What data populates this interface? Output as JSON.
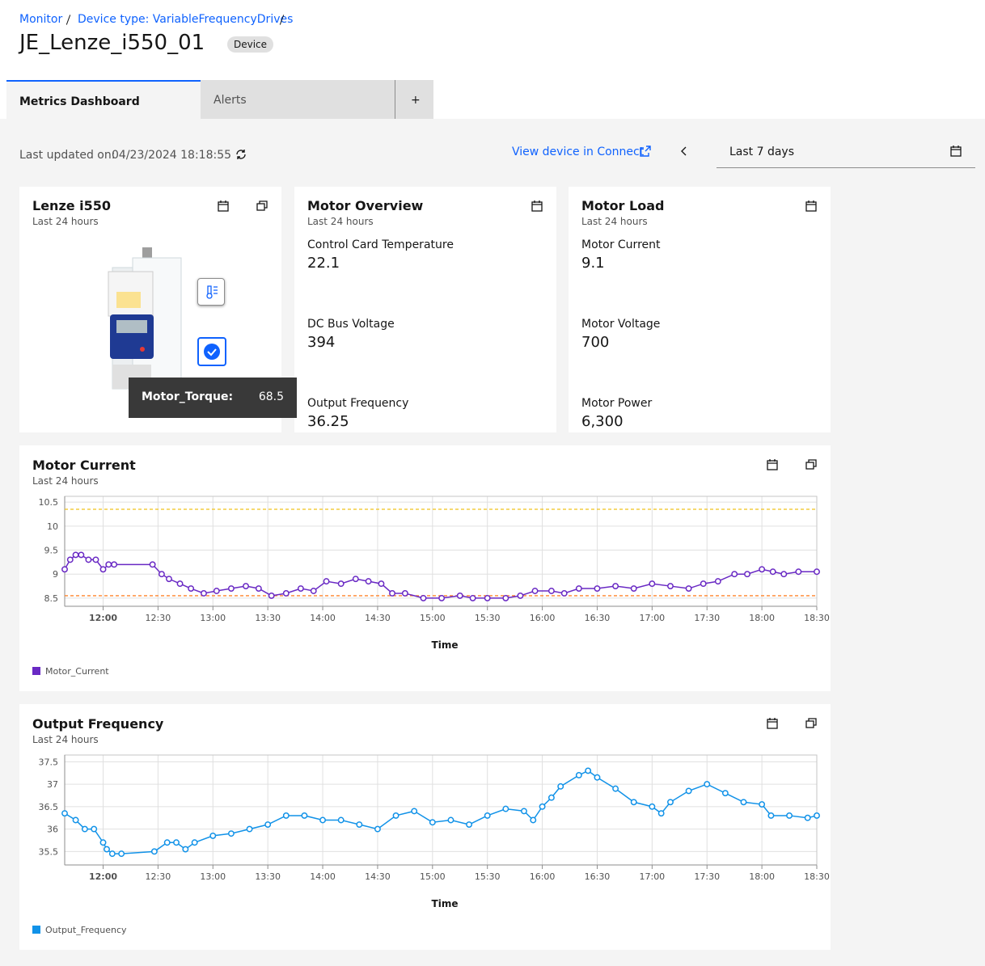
{
  "breadcrumb": [
    "Monitor",
    "Device type: VariableFrequencyDrives"
  ],
  "title": "JE_Lenze_i550_01",
  "tag": "Device",
  "tabs": [
    "Metrics Dashboard",
    "Alerts",
    "+"
  ],
  "toolbar": {
    "last_updated_label": "Last updated on:",
    "last_updated": "04/23/2024 18:18:55",
    "link": "View device in Connect",
    "range": "Last 7 days"
  },
  "cards": [
    {
      "title": "Lenze i550",
      "subtitle": "Last 24 hours",
      "tooltip": {
        "label": "Motor_Torque:",
        "value": "68.5"
      }
    },
    {
      "title": "Motor Overview",
      "subtitle": "Last 24 hours",
      "metrics": [
        {
          "label": "Control Card Temperature",
          "value": "22.1"
        },
        {
          "label": "DC Bus Voltage",
          "value": "394"
        },
        {
          "label": "Output Frequency",
          "value": "36.25"
        }
      ]
    },
    {
      "title": "Motor Load",
      "subtitle": "Last 24 hours",
      "metrics": [
        {
          "label": "Motor Current",
          "value": "9.1"
        },
        {
          "label": "Motor Voltage",
          "value": "700"
        },
        {
          "label": "Motor Power",
          "value": "6,300"
        }
      ]
    }
  ],
  "chart_data": [
    {
      "type": "line",
      "title": "Motor Current",
      "subtitle": "Last 24 hours",
      "x_label": "Time",
      "x": [
        "11:39",
        "11:42",
        "11:45",
        "11:48",
        "11:52",
        "11:56",
        "12:00",
        "12:03",
        "12:06",
        "12:27",
        "12:32",
        "12:36",
        "12:42",
        "12:48",
        "12:55",
        "13:02",
        "13:10",
        "13:18",
        "13:25",
        "13:32",
        "13:40",
        "13:48",
        "13:55",
        "14:02",
        "14:10",
        "14:18",
        "14:25",
        "14:32",
        "14:38",
        "14:45",
        "14:55",
        "15:05",
        "15:15",
        "15:22",
        "15:30",
        "15:40",
        "15:48",
        "15:56",
        "16:05",
        "16:12",
        "16:20",
        "16:30",
        "16:40",
        "16:50",
        "17:00",
        "17:10",
        "17:20",
        "17:28",
        "17:36",
        "17:45",
        "17:52",
        "18:00",
        "18:06",
        "18:12",
        "18:20",
        "18:30"
      ],
      "series": [
        {
          "name": "Motor_Current",
          "color": "#6929c4",
          "values": [
            9.1,
            9.3,
            9.4,
            9.4,
            9.3,
            9.3,
            9.1,
            9.2,
            9.2,
            9.2,
            9.0,
            8.9,
            8.8,
            8.7,
            8.6,
            8.65,
            8.7,
            8.75,
            8.7,
            8.55,
            8.6,
            8.7,
            8.65,
            8.85,
            8.8,
            8.9,
            8.85,
            8.8,
            8.6,
            8.6,
            8.5,
            8.5,
            8.55,
            8.5,
            8.5,
            8.5,
            8.55,
            8.65,
            8.65,
            8.6,
            8.7,
            8.7,
            8.75,
            8.7,
            8.8,
            8.75,
            8.7,
            8.8,
            8.85,
            9.0,
            9.0,
            9.1,
            9.05,
            9.0,
            9.05,
            9.05
          ]
        }
      ],
      "thresholds": [
        {
          "value": 10.35,
          "color": "#f1c21b"
        },
        {
          "value": 8.55,
          "color": "#ff832b"
        }
      ],
      "xlim": [
        "11:39",
        "18:30"
      ],
      "xticks": [
        "12:00",
        "12:30",
        "13:00",
        "13:30",
        "14:00",
        "14:30",
        "15:00",
        "15:30",
        "16:00",
        "16:30",
        "17:00",
        "17:30",
        "18:00",
        "18:30"
      ],
      "ylim": [
        8.33,
        10.62
      ],
      "yticks": [
        8.5,
        9,
        9.5,
        10,
        10.5
      ],
      "grid": true
    },
    {
      "type": "line",
      "title": "Output Frequency",
      "subtitle": "Last 24 hours",
      "x_label": "Time",
      "x": [
        "11:39",
        "11:45",
        "11:50",
        "11:55",
        "12:00",
        "12:02",
        "12:05",
        "12:10",
        "12:28",
        "12:35",
        "12:40",
        "12:45",
        "12:50",
        "13:00",
        "13:10",
        "13:20",
        "13:30",
        "13:40",
        "13:50",
        "14:00",
        "14:10",
        "14:20",
        "14:30",
        "14:40",
        "14:50",
        "15:00",
        "15:10",
        "15:20",
        "15:30",
        "15:40",
        "15:50",
        "15:55",
        "16:00",
        "16:05",
        "16:10",
        "16:20",
        "16:25",
        "16:30",
        "16:40",
        "16:50",
        "17:00",
        "17:05",
        "17:10",
        "17:20",
        "17:30",
        "17:40",
        "17:50",
        "18:00",
        "18:05",
        "18:15",
        "18:25",
        "18:30"
      ],
      "series": [
        {
          "name": "Output_Frequency",
          "color": "#1192e8",
          "values": [
            36.35,
            36.2,
            36.0,
            36.0,
            35.7,
            35.55,
            35.45,
            35.45,
            35.5,
            35.7,
            35.7,
            35.55,
            35.7,
            35.85,
            35.9,
            36.0,
            36.1,
            36.3,
            36.3,
            36.2,
            36.2,
            36.1,
            36.0,
            36.3,
            36.4,
            36.15,
            36.2,
            36.1,
            36.3,
            36.45,
            36.4,
            36.2,
            36.5,
            36.7,
            36.95,
            37.2,
            37.3,
            37.15,
            36.9,
            36.6,
            36.5,
            36.35,
            36.6,
            36.85,
            37.0,
            36.8,
            36.6,
            36.55,
            36.3,
            36.3,
            36.25,
            36.3
          ]
        }
      ],
      "xlim": [
        "11:39",
        "18:30"
      ],
      "xticks": [
        "12:00",
        "12:30",
        "13:00",
        "13:30",
        "14:00",
        "14:30",
        "15:00",
        "15:30",
        "16:00",
        "16:30",
        "17:00",
        "17:30",
        "18:00",
        "18:30"
      ],
      "ylim": [
        35.2,
        37.65
      ],
      "yticks": [
        35.5,
        36,
        36.5,
        37,
        37.5
      ],
      "grid": true
    }
  ]
}
